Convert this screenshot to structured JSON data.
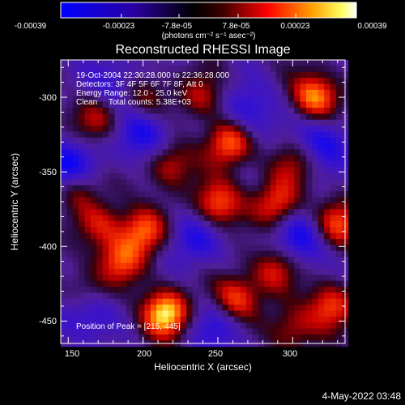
{
  "chart_data": {
    "type": "heatmap",
    "title": "Reconstructed RHESSI Image",
    "xlabel": "Heliocentric X (arcsec)",
    "ylabel": "Heliocentric Y (arcsec)",
    "xlim": [
      145,
      335
    ],
    "ylim": [
      -465,
      -275
    ],
    "x_ticks": [
      150,
      200,
      250,
      300
    ],
    "y_ticks": [
      -300,
      -350,
      -400,
      -450
    ],
    "colorbar": {
      "range": [
        -0.00039,
        0.00039
      ],
      "tick_labels": [
        "-0.00039",
        "-0.00023",
        "-7.8e-05",
        "7.8e-05",
        "0.00023",
        "0.00039"
      ],
      "unit_label": "(photons cm⁻² s⁻¹ asec⁻²)",
      "colormap": [
        "#0000ff",
        "#000000",
        "#ff0000",
        "#ffff00",
        "#ffffff"
      ]
    },
    "info_lines": [
      "19-Oct-2004 22:30:28.000 to 22:36:28.000",
      "Detectors: 3F 4F 5F 6F 7F 8F, Att 0",
      "Energy Range: 12.0 - 25.0 keV",
      "Clean     Total counts: 5.38E+03"
    ],
    "peak_label": "Position of Peak = [215,-445]",
    "peak": [
      215,
      -445
    ],
    "hotspots": [
      {
        "x": 215,
        "y": -445,
        "v": 1.0
      },
      {
        "x": 315,
        "y": -300,
        "v": 0.85
      },
      {
        "x": 258,
        "y": -330,
        "v": 0.8
      },
      {
        "x": 155,
        "y": -360,
        "v": 0.7
      },
      {
        "x": 250,
        "y": -372,
        "v": 0.75
      },
      {
        "x": 290,
        "y": -372,
        "v": 0.65
      },
      {
        "x": 200,
        "y": -390,
        "v": 0.72
      },
      {
        "x": 185,
        "y": -410,
        "v": 0.6
      },
      {
        "x": 330,
        "y": -385,
        "v": 0.65
      },
      {
        "x": 262,
        "y": -435,
        "v": 0.68
      },
      {
        "x": 325,
        "y": -440,
        "v": 0.6
      },
      {
        "x": 218,
        "y": -345,
        "v": 0.55
      },
      {
        "x": 170,
        "y": -315,
        "v": 0.5
      },
      {
        "x": 288,
        "y": -415,
        "v": 0.55
      },
      {
        "x": 240,
        "y": -300,
        "v": 0.45
      },
      {
        "x": 200,
        "y": -300,
        "v": 0.45
      },
      {
        "x": 300,
        "y": -345,
        "v": 0.4
      },
      {
        "x": 160,
        "y": -430,
        "v": 0.4
      },
      {
        "x": 300,
        "y": -455,
        "v": 0.45
      },
      {
        "x": 172,
        "y": -385,
        "v": 0.45
      }
    ],
    "coldspots": [
      {
        "x": 150,
        "y": -350,
        "v": -0.8
      },
      {
        "x": 305,
        "y": -395,
        "v": -0.55
      },
      {
        "x": 200,
        "y": -325,
        "v": -0.55
      },
      {
        "x": 160,
        "y": -445,
        "v": -0.5
      },
      {
        "x": 270,
        "y": -310,
        "v": -0.5
      },
      {
        "x": 235,
        "y": -395,
        "v": -0.45
      },
      {
        "x": 320,
        "y": -330,
        "v": -0.5
      },
      {
        "x": 250,
        "y": -455,
        "v": -0.4
      },
      {
        "x": 180,
        "y": -290,
        "v": -0.4
      }
    ]
  },
  "footer_date": "4-May-2022 03:48"
}
